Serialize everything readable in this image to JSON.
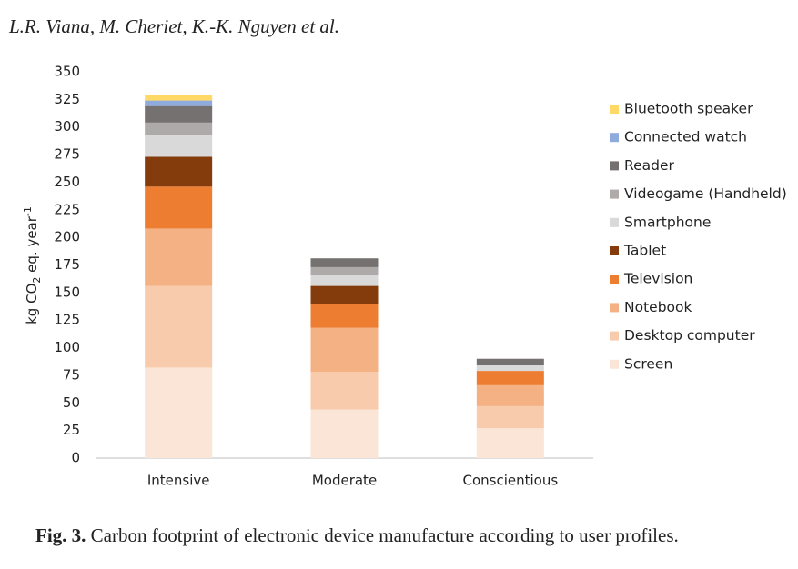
{
  "header": "L.R. Viana, M. Cheriet, K.-K. Nguyen et al.",
  "caption": {
    "label": "Fig. 3.",
    "text": "Carbon footprint of electronic device manufacture according to user profiles."
  },
  "chart_data": {
    "type": "stacked-bar",
    "ylabel": [
      "kg CO",
      "2",
      " eq. year",
      "-1"
    ],
    "categories": [
      "Intensive",
      "Moderate",
      "Conscientious"
    ],
    "series": [
      {
        "name": "Screen",
        "color": "#fbe5d6",
        "values": [
          82,
          44,
          27
        ]
      },
      {
        "name": "Desktop computer",
        "color": "#f8cbad",
        "values": [
          74,
          34,
          20
        ]
      },
      {
        "name": "Notebook",
        "color": "#f4b183",
        "values": [
          52,
          40,
          19
        ]
      },
      {
        "name": "Television",
        "color": "#ed7d31",
        "values": [
          38,
          22,
          13
        ]
      },
      {
        "name": "Tablet",
        "color": "#843c0c",
        "values": [
          27,
          16,
          0
        ]
      },
      {
        "name": "Smartphone",
        "color": "#d9d9d9",
        "values": [
          20,
          10,
          5
        ]
      },
      {
        "name": "Videogame (Handheld)",
        "color": "#aeaaaa",
        "values": [
          11,
          7,
          0
        ]
      },
      {
        "name": "Reader",
        "color": "#767171",
        "values": [
          15,
          8,
          6
        ]
      },
      {
        "name": "Connected watch",
        "color": "#8faadc",
        "values": [
          5,
          0,
          0
        ]
      },
      {
        "name": "Bluetooth speaker",
        "color": "#ffd966",
        "values": [
          5,
          0,
          0
        ]
      }
    ],
    "ylim": [
      0,
      350
    ],
    "yticks": [
      0,
      25,
      50,
      75,
      100,
      125,
      150,
      175,
      200,
      225,
      250,
      275,
      300,
      325,
      350
    ],
    "grid": false,
    "legend": "right"
  }
}
